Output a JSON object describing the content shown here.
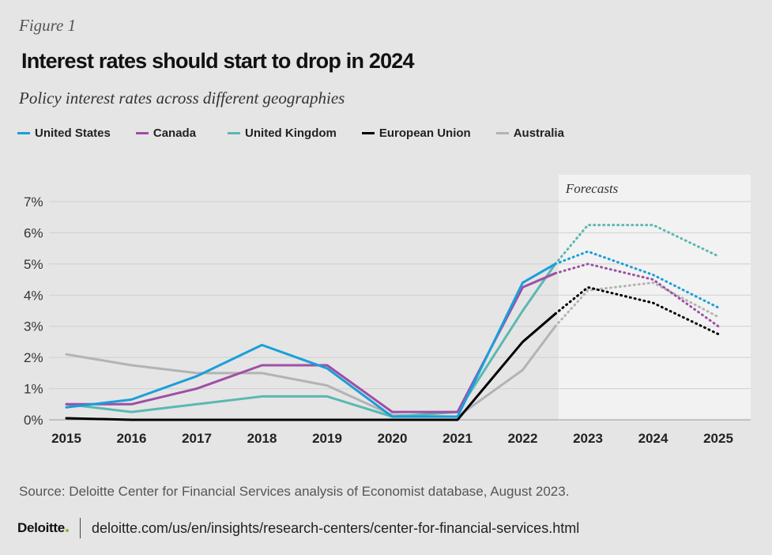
{
  "figure_label": "Figure 1",
  "title": "Interest rates should start to drop in 2024",
  "subtitle": "Policy interest rates across different geographies",
  "forecast_label": "Forecasts",
  "source": "Source: Deloitte Center for Financial Services analysis of Economist database, August 2023.",
  "footer": {
    "logo": "Deloitte",
    "url": "deloitte.com/us/en/insights/research-centers/center-for-financial-services.html"
  },
  "chart_data": {
    "type": "line",
    "x": [
      "2015",
      "2016",
      "2017",
      "2018",
      "2019",
      "2020",
      "2021",
      "2022",
      "2023",
      "2024",
      "2025"
    ],
    "ylim": [
      0,
      7
    ],
    "yticks": [
      "0%",
      "1%",
      "2%",
      "3%",
      "4%",
      "5%",
      "6%",
      "7%"
    ],
    "grid": true,
    "legend_position": "top-left",
    "forecast_region": {
      "start": "mid-2022",
      "label": "Forecasts"
    },
    "series": [
      {
        "name": "United States",
        "color": "#1a9fd9",
        "actual": [
          [
            2015,
            0.4
          ],
          [
            2016,
            0.65
          ],
          [
            2017,
            1.4
          ],
          [
            2018,
            2.4
          ],
          [
            2019,
            1.65
          ],
          [
            2020,
            0.1
          ],
          [
            2021,
            0.1
          ],
          [
            2022,
            4.4
          ],
          [
            2022.5,
            5.0
          ]
        ],
        "forecast": [
          [
            2022.5,
            5.0
          ],
          [
            2023,
            5.4
          ],
          [
            2024,
            4.65
          ],
          [
            2025,
            3.6
          ]
        ]
      },
      {
        "name": "Canada",
        "color": "#9e4fa5",
        "actual": [
          [
            2015,
            0.5
          ],
          [
            2016,
            0.5
          ],
          [
            2017,
            1.0
          ],
          [
            2018,
            1.75
          ],
          [
            2019,
            1.75
          ],
          [
            2020,
            0.25
          ],
          [
            2021,
            0.25
          ],
          [
            2022,
            4.25
          ],
          [
            2022.5,
            4.7
          ]
        ],
        "forecast": [
          [
            2022.5,
            4.7
          ],
          [
            2023,
            5.0
          ],
          [
            2024,
            4.5
          ],
          [
            2025,
            3.0
          ]
        ]
      },
      {
        "name": "United Kingdom",
        "color": "#5ab8b2",
        "actual": [
          [
            2015,
            0.5
          ],
          [
            2016,
            0.25
          ],
          [
            2017,
            0.5
          ],
          [
            2018,
            0.75
          ],
          [
            2019,
            0.75
          ],
          [
            2020,
            0.1
          ],
          [
            2021,
            0.25
          ],
          [
            2022,
            3.5
          ],
          [
            2022.5,
            5.0
          ]
        ],
        "forecast": [
          [
            2022.5,
            5.0
          ],
          [
            2023,
            6.25
          ],
          [
            2024,
            6.25
          ],
          [
            2025,
            5.25
          ]
        ]
      },
      {
        "name": "European Union",
        "color": "#000000",
        "actual": [
          [
            2015,
            0.05
          ],
          [
            2016,
            0.0
          ],
          [
            2017,
            0.0
          ],
          [
            2018,
            0.0
          ],
          [
            2019,
            0.0
          ],
          [
            2020,
            0.0
          ],
          [
            2021,
            0.0
          ],
          [
            2022,
            2.5
          ],
          [
            2022.5,
            3.4
          ]
        ],
        "forecast": [
          [
            2022.5,
            3.4
          ],
          [
            2023,
            4.25
          ],
          [
            2024,
            3.75
          ],
          [
            2025,
            2.75
          ]
        ]
      },
      {
        "name": "Australia",
        "color": "#b3b3b3",
        "actual": [
          [
            2015,
            2.1
          ],
          [
            2016,
            1.75
          ],
          [
            2017,
            1.5
          ],
          [
            2018,
            1.5
          ],
          [
            2019,
            1.1
          ],
          [
            2020,
            0.15
          ],
          [
            2021,
            0.1
          ],
          [
            2022,
            1.6
          ],
          [
            2022.5,
            3.0
          ]
        ],
        "forecast": [
          [
            2022.5,
            3.0
          ],
          [
            2023,
            4.15
          ],
          [
            2024,
            4.4
          ],
          [
            2025,
            3.3
          ]
        ]
      }
    ]
  }
}
